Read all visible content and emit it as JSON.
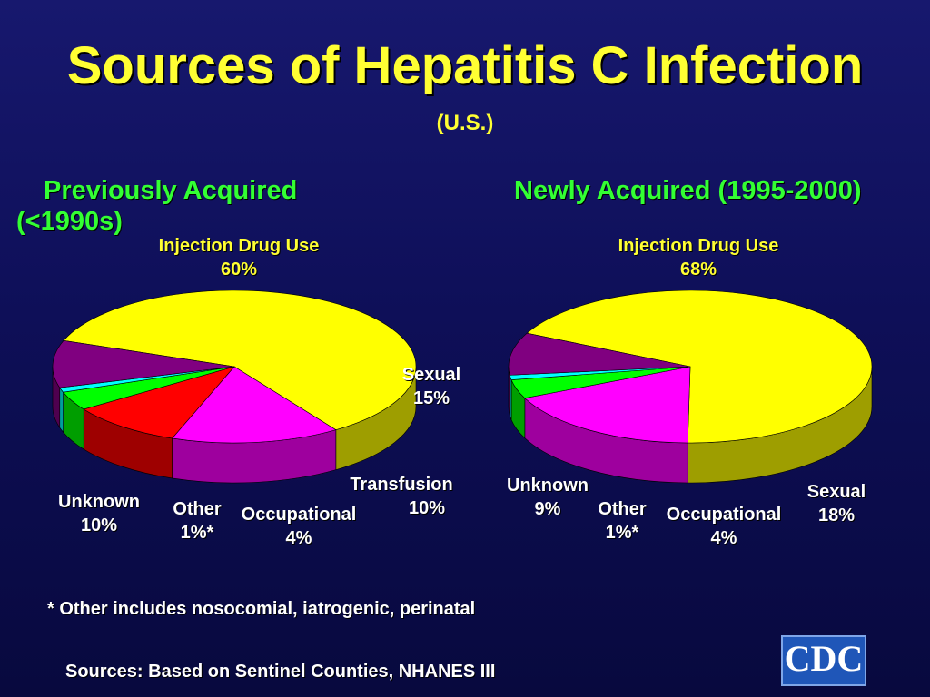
{
  "slide": {
    "title": "Sources of Hepatitis C Infection",
    "subtitle": "(U.S.)",
    "footnote": "* Other includes nosocomial, iatrogenic, perinatal",
    "sources": "Sources: Based on Sentinel Counties, NHANES III",
    "logo_text": "CDC"
  },
  "colors": {
    "Injection Drug Use": "#ffff00",
    "Sexual": "#ff00ff",
    "Transfusion": "#ff0000",
    "Occupational": "#00ff00",
    "Other": "#00ffff",
    "Unknown": "#800080"
  },
  "chart_data": [
    {
      "type": "pie",
      "title_line1": "Previously Acquired",
      "title_line2": "(<1990s)",
      "slices": [
        {
          "label": "Injection Drug Use",
          "value": 60,
          "value_label": "60%"
        },
        {
          "label": "Sexual",
          "value": 15,
          "value_label": "15%"
        },
        {
          "label": "Transfusion",
          "value": 10,
          "value_label": "10%"
        },
        {
          "label": "Occupational",
          "value": 4,
          "value_label": "4%"
        },
        {
          "label": "Other",
          "value": 1,
          "value_label": "1%*"
        },
        {
          "label": "Unknown",
          "value": 10,
          "value_label": "10%"
        }
      ]
    },
    {
      "type": "pie",
      "title": "Newly Acquired (1995-2000)",
      "slices": [
        {
          "label": "Injection Drug Use",
          "value": 68,
          "value_label": "68%"
        },
        {
          "label": "Sexual",
          "value": 18,
          "value_label": "18%"
        },
        {
          "label": "Occupational",
          "value": 4,
          "value_label": "4%"
        },
        {
          "label": "Other",
          "value": 1,
          "value_label": "1%*"
        },
        {
          "label": "Unknown",
          "value": 9,
          "value_label": "9%"
        }
      ]
    }
  ]
}
